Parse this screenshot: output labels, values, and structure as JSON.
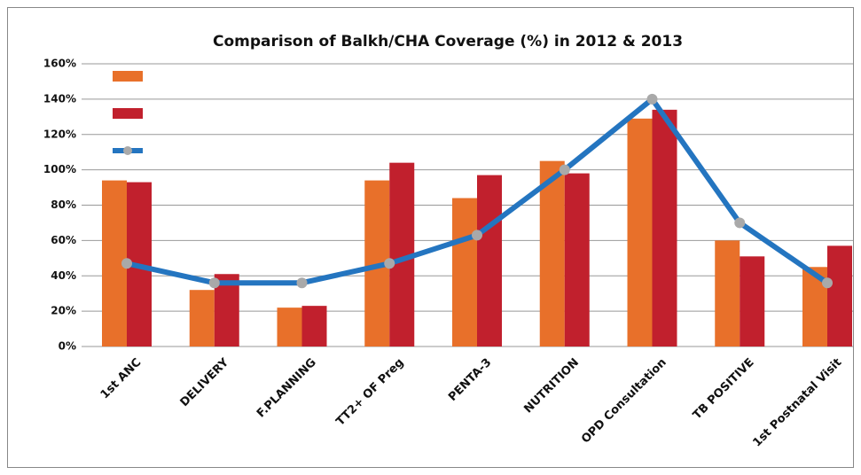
{
  "chart_data": {
    "type": "bar_line",
    "title": "Comparison of Balkh/CHA Coverage (%) in 2012 & 2013",
    "categories": [
      "1st ANC",
      "DELIVERY",
      "F.PLANNING",
      "TT2+ OF Preg",
      "PENTA-3",
      "NUTRITION",
      "OPD Consultation",
      "TB POSITIVE",
      "1st Postnatal Visit"
    ],
    "series": [
      {
        "type": "bar",
        "color": "#e8702a",
        "values": [
          94,
          32,
          22,
          94,
          84,
          105,
          129,
          60,
          45
        ]
      },
      {
        "type": "bar",
        "color": "#c1202d",
        "values": [
          93,
          41,
          23,
          104,
          97,
          98,
          134,
          51,
          57
        ]
      },
      {
        "type": "line",
        "color": "#2475c0",
        "marker_color": "#a9a9a9",
        "values": [
          47,
          36,
          36,
          47,
          63,
          100,
          140,
          70,
          36
        ]
      }
    ],
    "ylim": [
      0,
      160
    ],
    "yticks": [
      {
        "value": 0,
        "label": "0%"
      },
      {
        "value": 20,
        "label": "20%"
      },
      {
        "value": 40,
        "label": "40%"
      },
      {
        "value": 60,
        "label": "60%"
      },
      {
        "value": 80,
        "label": "80%"
      },
      {
        "value": 100,
        "label": "100%"
      },
      {
        "value": 120,
        "label": "120%"
      },
      {
        "value": 140,
        "label": "140%"
      },
      {
        "value": 160,
        "label": "160%"
      }
    ],
    "grid": true
  }
}
